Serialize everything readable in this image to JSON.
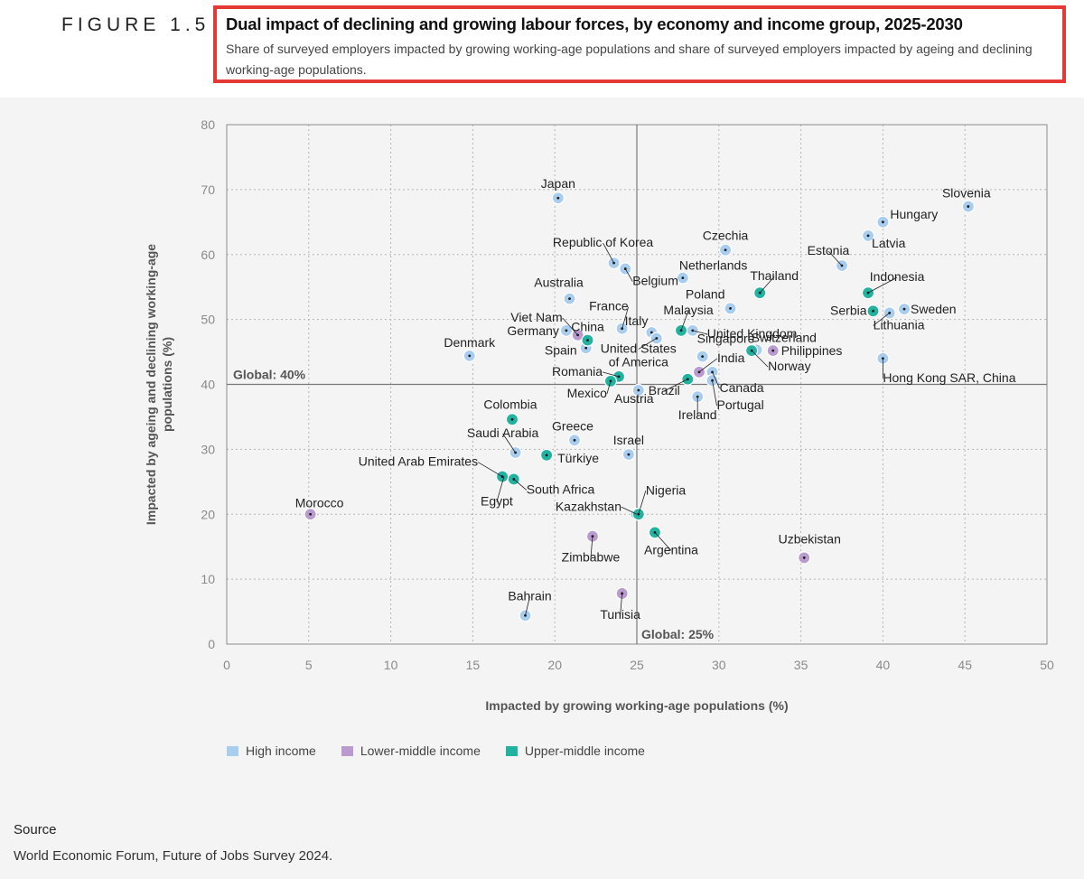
{
  "figure": {
    "label": "FIGURE 1.5",
    "title": "Dual impact of declining and growing labour forces, by economy and income group, 2025-2030",
    "subtitle": "Share of surveyed employers impacted by growing working-age populations and share of surveyed employers impacted by ageing and declining working-age populations."
  },
  "source": {
    "heading": "Source",
    "text": "World Economic Forum, Future of Jobs Survey 2024."
  },
  "legend": [
    {
      "label": "High income",
      "color": "#a9cdee"
    },
    {
      "label": "Lower-middle income",
      "color": "#b99bd0"
    },
    {
      "label": "Upper-middle income",
      "color": "#22b2a0"
    }
  ],
  "chart_data": {
    "type": "scatter",
    "xlabel": "Impacted by growing working-age populations (%)",
    "ylabel": "Impacted by ageing and declining working-age populations (%)",
    "xlim": [
      0,
      50
    ],
    "ylim": [
      0,
      80
    ],
    "xticks": [
      "0",
      "5",
      "10",
      "15",
      "20",
      "25",
      "30",
      "35",
      "40",
      "45",
      "50"
    ],
    "yticks": [
      "0",
      "10",
      "20",
      "30",
      "40",
      "50",
      "60",
      "70",
      "80"
    ],
    "grid": true,
    "reference_lines": [
      {
        "axis": "y",
        "value": 40,
        "label": "Global: 40%"
      },
      {
        "axis": "x",
        "value": 25,
        "label": "Global: 25%"
      }
    ],
    "series": [
      {
        "name": "High income",
        "color": "#a9cdee",
        "points": [
          {
            "label": "Japan",
            "x": 20.2,
            "y": 68.7
          },
          {
            "label": "Slovenia",
            "x": 45.2,
            "y": 67.4
          },
          {
            "label": "Hungary",
            "x": 40.0,
            "y": 65.0
          },
          {
            "label": "Latvia",
            "x": 39.1,
            "y": 62.9
          },
          {
            "label": "Czechia",
            "x": 30.4,
            "y": 60.7
          },
          {
            "label": "Republic of Korea",
            "x": 23.6,
            "y": 58.7
          },
          {
            "label": "Estonia",
            "x": 37.5,
            "y": 58.3
          },
          {
            "label": "Belgium",
            "x": 24.3,
            "y": 57.8
          },
          {
            "label": "Netherlands",
            "x": 27.8,
            "y": 56.4
          },
          {
            "label": "Australia",
            "x": 20.9,
            "y": 53.2
          },
          {
            "label": "Poland",
            "x": 30.7,
            "y": 51.7
          },
          {
            "label": "Sweden",
            "x": 41.3,
            "y": 51.6
          },
          {
            "label": "Lithuania",
            "x": 40.4,
            "y": 51.0
          },
          {
            "label": "France",
            "x": 24.1,
            "y": 48.6
          },
          {
            "label": "United Kingdom",
            "x": 28.4,
            "y": 48.3
          },
          {
            "label": "Germany",
            "x": 20.7,
            "y": 48.3
          },
          {
            "label": "Italy",
            "x": 25.9,
            "y": 48.0
          },
          {
            "label": "United States of America",
            "x": 26.2,
            "y": 47.1
          },
          {
            "label": "Spain",
            "x": 21.9,
            "y": 45.6
          },
          {
            "label": "Switzerland",
            "x": 32.3,
            "y": 45.3
          },
          {
            "label": "Denmark",
            "x": 14.8,
            "y": 44.4
          },
          {
            "label": "Singapore",
            "x": 29.0,
            "y": 44.3
          },
          {
            "label": "Hong Kong SAR, China",
            "x": 40.0,
            "y": 44.0
          },
          {
            "label": "Canada",
            "x": 29.6,
            "y": 41.9
          },
          {
            "label": "Portugal",
            "x": 29.6,
            "y": 40.6
          },
          {
            "label": "Austria",
            "x": 25.1,
            "y": 39.1
          },
          {
            "label": "Ireland",
            "x": 28.7,
            "y": 38.1
          },
          {
            "label": "Saudi Arabia",
            "x": 17.6,
            "y": 29.5
          },
          {
            "label": "Greece",
            "x": 21.2,
            "y": 31.4
          },
          {
            "label": "Israel",
            "x": 24.5,
            "y": 29.2
          },
          {
            "label": "Bahrain",
            "x": 18.2,
            "y": 4.4
          }
        ]
      },
      {
        "name": "Lower-middle income",
        "color": "#b99bd0",
        "points": [
          {
            "label": "Viet Nam",
            "x": 21.4,
            "y": 47.6
          },
          {
            "label": "Philippines",
            "x": 33.3,
            "y": 45.2
          },
          {
            "label": "India",
            "x": 28.8,
            "y": 41.9
          },
          {
            "label": "Egypt",
            "x": 16.9,
            "y": 25.8
          },
          {
            "label": "Morocco",
            "x": 5.1,
            "y": 20.0
          },
          {
            "label": "Zimbabwe",
            "x": 22.3,
            "y": 16.6
          },
          {
            "label": "Uzbekistan",
            "x": 35.2,
            "y": 13.3
          },
          {
            "label": "Tunisia",
            "x": 24.1,
            "y": 7.8
          }
        ]
      },
      {
        "name": "Upper-middle income",
        "color": "#22b2a0",
        "points": [
          {
            "label": "Thailand",
            "x": 32.5,
            "y": 54.1
          },
          {
            "label": "Indonesia",
            "x": 39.1,
            "y": 54.1
          },
          {
            "label": "Serbia",
            "x": 39.4,
            "y": 51.3
          },
          {
            "label": "China",
            "x": 22.0,
            "y": 46.8
          },
          {
            "label": "Malaysia",
            "x": 27.7,
            "y": 48.3
          },
          {
            "label": "Norway",
            "x": 32.0,
            "y": 45.2
          },
          {
            "label": "Romania",
            "x": 23.9,
            "y": 41.2
          },
          {
            "label": "Brazil",
            "x": 28.1,
            "y": 40.8
          },
          {
            "label": "Mexico",
            "x": 23.4,
            "y": 40.5
          },
          {
            "label": "Colombia",
            "x": 17.4,
            "y": 34.6
          },
          {
            "label": "Türkiye",
            "x": 19.5,
            "y": 29.1
          },
          {
            "label": "South Africa",
            "x": 17.5,
            "y": 25.4
          },
          {
            "label": "United Arab Emirates",
            "x": 16.8,
            "y": 25.8
          },
          {
            "label": "Kazakhstan",
            "x": 25.0,
            "y": 20.0
          },
          {
            "label": "Nigeria",
            "x": 25.1,
            "y": 20.0
          },
          {
            "label": "Argentina",
            "x": 26.1,
            "y": 17.2
          }
        ]
      }
    ]
  }
}
